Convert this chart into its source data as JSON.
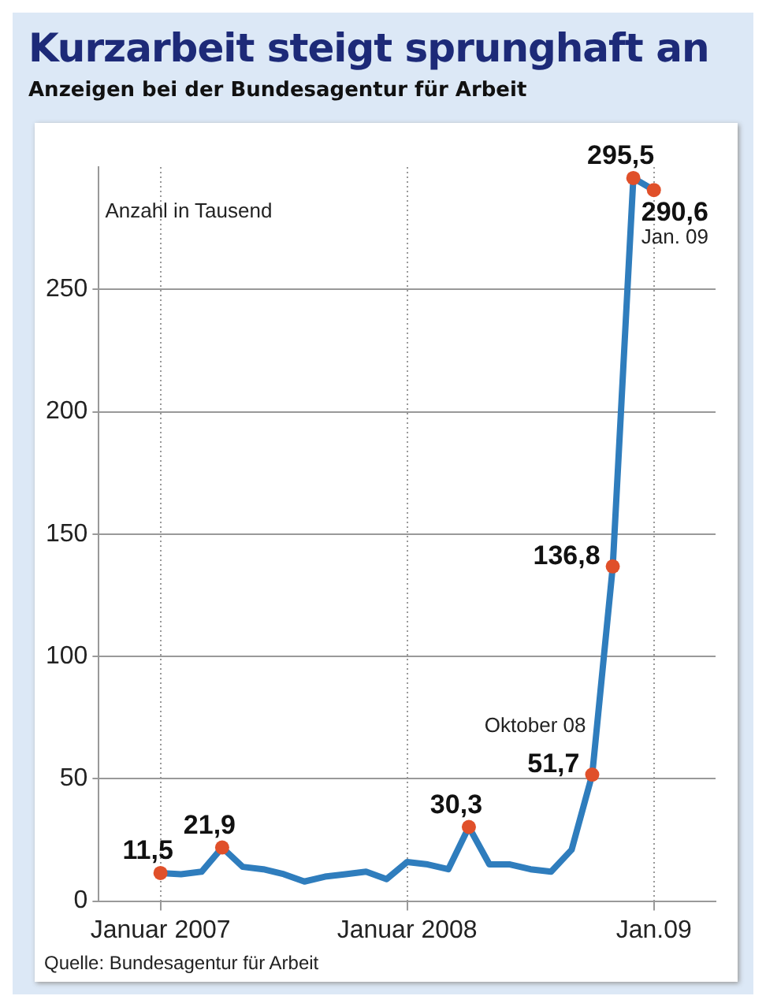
{
  "chart_data": {
    "type": "line",
    "title": "Kurzarbeit steigt sprunghaft an",
    "subtitle": "Anzeigen bei der Bundesagentur für Arbeit",
    "ylabel": "Anzahl in Tausend",
    "x": [
      "2007-01",
      "2007-02",
      "2007-03",
      "2007-04",
      "2007-05",
      "2007-06",
      "2007-07",
      "2007-08",
      "2007-09",
      "2007-10",
      "2007-11",
      "2007-12",
      "2008-01",
      "2008-02",
      "2008-03",
      "2008-04",
      "2008-05",
      "2008-06",
      "2008-07",
      "2008-08",
      "2008-09",
      "2008-10",
      "2008-11",
      "2008-12",
      "2009-01"
    ],
    "series": [
      {
        "color": "#2f7dbd",
        "values": [
          11.5,
          11,
          12,
          21.9,
          14,
          13,
          11,
          8,
          10,
          11,
          12,
          9,
          16,
          15,
          13,
          30.3,
          15,
          15,
          13,
          12,
          21,
          51.7,
          136.8,
          295.5,
          290.6
        ],
        "value_labels": [
          "11,5",
          null,
          null,
          "21,9",
          null,
          null,
          null,
          null,
          null,
          null,
          null,
          null,
          null,
          null,
          null,
          "30,3",
          null,
          null,
          null,
          null,
          null,
          "51,7",
          "136,8",
          "295,5",
          "290,6"
        ]
      }
    ],
    "xlim": [
      "2006-10",
      "2009-04"
    ],
    "xticks": [
      {
        "value": "2007-01",
        "label": "Januar 2007"
      },
      {
        "value": "2008-01",
        "label": "Januar 2008"
      },
      {
        "value": "2009-01",
        "label": "Jan.09"
      }
    ],
    "ylim": [
      0,
      300
    ],
    "yticks": [
      0,
      50,
      100,
      150,
      200,
      250
    ],
    "grid": true,
    "legend": false,
    "line_style": "solid",
    "annotations": [
      {
        "text": "Oktober 08",
        "x": "2008-10",
        "y": 51.7
      },
      {
        "text": "Jan. 09",
        "x": "2009-01",
        "y": 290.6
      },
      "Quelle: Bundesagentur für Arbeit"
    ]
  }
}
